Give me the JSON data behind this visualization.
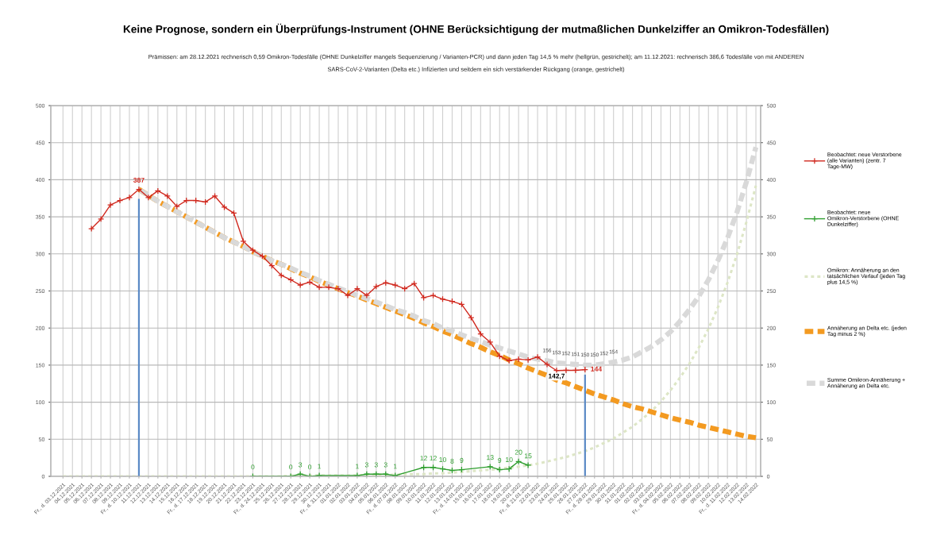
{
  "chart_data": {
    "type": "line",
    "title": "Keine Prognose, sondern ein Überprüfungs-Instrument (OHNE Berücksichtigung der mutmaßlichen Dunkelziffer an Omikron-Todesfällen)",
    "subtitle": "Prämissen: am 28.12.2021 rechnerisch 0,59 Omikron-Todesfälle (OHNE Dunkelziffer mangels Sequenzierung / Varianten-PCR) und dann jeden Tag 14,5 % mehr (hellgrün, gestrichelt); am 11.12.2021: rechnerisch 386,6 Todesfälle von mit ANDEREN SARS-CoV-2-Varianten (Delta etc.) Infizierten und seitdem ein sich verstärkender Rückgang (orange, gestrichelt)",
    "categories": [
      "Fr., d. 03.12.2021",
      "04.12.2021",
      "05.12.2021",
      "06.12.2021",
      "07.12.2021",
      "08.12.2021",
      "09.12.2021",
      "Fr., d. 10.12.2021",
      "11.12.2021",
      "12.12.2021",
      "13.12.2021",
      "14.12.2021",
      "15.12.2021",
      "16.12.2021",
      "Fr., d. 17.12.2021",
      "18.12.2021",
      "19.12.2021",
      "20.12.2021",
      "21.12.2021",
      "22.12.2021",
      "23.12.2021",
      "Fr., d. 24.12.2021",
      "25.12.2021",
      "26.12.2021",
      "27.12.2021",
      "28.12.2021",
      "29.12.2021",
      "30.12.2021",
      "Fr., d. 31.12.2021",
      "01.01.2022",
      "02.01.2022",
      "03.01.2022",
      "04.01.2022",
      "05.01.2022",
      "06.01.2022",
      "Fr., d. 07.01.2022",
      "08.01.2022",
      "09.01.2022",
      "10.01.2022",
      "11.01.2022",
      "12.01.2022",
      "13.01.2022",
      "Fr., d. 14.01.2022",
      "15.01.2022",
      "16.01.2022",
      "17.01.2022",
      "18.01.2022",
      "19.01.2022",
      "20.01.2022",
      "Fr., d. 21.01.2022",
      "22.01.2022",
      "23.01.2022",
      "24.01.2022",
      "25.01.2022",
      "26.01.2022",
      "27.01.2022",
      "Fr., d. 28.01.2022",
      "29.01.2022",
      "30.01.2022",
      "31.01.2022",
      "01.02.2022",
      "02.02.2022",
      "03.02.2022",
      "Fr., d. 04.02.2022",
      "05.02.2022",
      "06.02.2022",
      "07.02.2022",
      "08.02.2022",
      "09.02.2022",
      "10.02.2022",
      "Fr., d. 11.02.2022",
      "12.02.2022",
      "13.02.2022",
      "14.02.2022"
    ],
    "series": [
      {
        "name": "Beobachtet: neue Verstorbene (alle Varianten) (zentr. 7 Tage-MW)",
        "color": "#d0281e",
        "line_style": "solid",
        "marker": "cross",
        "values": [
          null,
          null,
          null,
          334,
          347,
          366,
          372,
          376,
          387,
          376,
          385,
          378,
          364,
          372,
          372,
          370,
          378,
          363,
          355,
          317,
          305,
          297,
          284,
          271,
          265,
          258,
          262,
          255,
          255,
          253,
          244,
          253,
          244,
          256,
          261,
          258,
          253,
          260,
          241,
          244,
          239,
          236,
          232,
          214,
          192,
          181,
          162,
          156,
          158,
          157,
          161,
          151,
          142.7,
          143,
          143,
          144,
          null,
          null,
          null,
          null,
          null,
          null,
          null,
          null,
          null,
          null,
          null,
          null,
          null,
          null,
          null,
          null,
          null,
          null
        ],
        "value_labels": [
          null,
          null,
          null,
          null,
          null,
          null,
          null,
          null,
          "387",
          null,
          null,
          null,
          null,
          null,
          null,
          null,
          null,
          null,
          null,
          null,
          null,
          null,
          null,
          null,
          null,
          null,
          null,
          null,
          null,
          null,
          null,
          null,
          null,
          null,
          null,
          null,
          null,
          null,
          null,
          null,
          null,
          null,
          null,
          null,
          null,
          null,
          null,
          null,
          null,
          null,
          null,
          null,
          null,
          null,
          null,
          "144",
          null,
          null,
          null,
          null,
          null,
          null,
          null,
          null,
          null,
          null,
          null,
          null,
          null,
          null,
          null,
          null,
          null,
          null
        ]
      },
      {
        "name": "Beobachtet: neue Omikron-Verstorbene (OHNE Dunkelziffer)",
        "color": "#2e9e2e",
        "line_style": "solid",
        "marker": "cross",
        "x": [
          "23.12.2021",
          "27.12.2021",
          "28.12.2021",
          "29.12.2021",
          "30.12.2021",
          "03.01.2022",
          "04.01.2022",
          "05.01.2022",
          "06.01.2022",
          "Fr., d. 07.01.2022",
          "10.01.2022",
          "11.01.2022",
          "12.01.2022",
          "13.01.2022",
          "Fr., d. 14.01.2022",
          "17.01.2022",
          "18.01.2022",
          "19.01.2022",
          "20.01.2022",
          "Fr., d. 21.01.2022"
        ],
        "values": [
          0,
          0,
          3,
          0,
          1,
          1,
          3,
          3,
          3,
          1,
          12,
          12,
          10,
          8,
          9,
          13,
          9,
          10,
          20,
          15
        ],
        "value_labels": [
          "0",
          "0",
          "3",
          "0",
          "1",
          "1",
          "3",
          "3",
          "3",
          "1",
          "12",
          "12",
          "10",
          "8",
          "9",
          "13",
          "9",
          "10",
          "20",
          "15"
        ]
      },
      {
        "name": "Omikron: Annäherung an den tatsächlichen Verlauf (jeden Tag plus 14,5 %)",
        "color": "#dde6c6",
        "line_style": "dotted",
        "values": [
          0,
          0,
          0,
          0,
          0,
          0,
          0,
          0,
          0,
          0,
          0,
          0,
          0,
          0,
          0,
          0,
          0,
          0,
          0,
          0,
          0,
          0,
          0,
          0,
          1,
          1,
          1,
          1,
          1,
          1,
          1,
          1,
          2,
          2,
          2,
          2,
          3,
          3,
          3,
          4,
          4,
          5,
          6,
          7,
          8,
          9,
          10,
          12,
          13,
          15,
          17,
          20,
          23,
          26,
          30,
          34,
          39,
          45,
          51,
          59,
          67,
          77,
          88,
          101,
          116,
          133,
          152,
          174,
          199,
          228,
          261,
          299,
          343,
          392
        ]
      },
      {
        "name": "Annäherung an Delta etc. (jeden Tag minus 2 %)",
        "color": "#f39a21",
        "line_style": "dashed",
        "values": [
          null,
          null,
          null,
          null,
          null,
          null,
          null,
          null,
          387,
          379,
          371,
          364,
          357,
          350,
          343,
          336,
          329,
          322,
          316,
          310,
          303,
          297,
          291,
          286,
          280,
          274,
          269,
          263,
          258,
          253,
          248,
          243,
          238,
          233,
          228,
          223,
          218,
          213,
          207,
          202,
          196,
          191,
          185,
          179,
          174,
          168,
          163,
          157,
          152,
          146,
          141,
          136,
          130,
          126,
          121,
          116,
          111,
          107,
          103,
          98,
          94,
          91,
          87,
          83,
          79,
          76,
          73,
          69,
          66,
          63,
          60,
          57,
          54,
          52
        ]
      },
      {
        "name": "Summe Omikron-Annäherung + Annäherung an Delta etc.",
        "color": "#d9d9d9",
        "line_style": "dashed",
        "values": [
          null,
          null,
          null,
          null,
          null,
          null,
          null,
          null,
          387,
          379,
          371,
          364,
          357,
          350,
          343,
          336,
          329,
          322,
          316,
          310,
          303,
          297,
          291,
          286,
          281,
          275,
          270,
          264,
          259,
          254,
          249,
          244,
          240,
          235,
          230,
          225,
          221,
          216,
          210,
          206,
          200,
          196,
          191,
          186,
          182,
          177,
          173,
          169,
          165,
          161,
          158,
          156,
          153,
          152,
          151,
          150,
          150,
          152,
          154,
          157,
          161,
          168,
          175,
          184,
          195,
          209,
          225,
          243,
          265,
          291,
          321,
          356,
          397,
          444
        ],
        "value_labels": [
          null,
          null,
          null,
          null,
          null,
          null,
          null,
          null,
          null,
          null,
          null,
          null,
          null,
          null,
          null,
          null,
          null,
          null,
          null,
          null,
          null,
          null,
          null,
          null,
          null,
          null,
          null,
          null,
          null,
          null,
          null,
          null,
          null,
          null,
          null,
          null,
          null,
          null,
          null,
          null,
          null,
          null,
          null,
          null,
          null,
          null,
          null,
          null,
          null,
          null,
          null,
          "156",
          "153",
          "152",
          "151",
          "150",
          "150",
          "152",
          "154",
          null,
          null,
          null,
          null,
          null,
          null,
          null,
          null,
          null,
          null,
          null,
          null,
          null,
          null,
          null
        ]
      },
      {
        "color": "#5b8ac6",
        "line_style": "solid",
        "x": [
          "11.12.2021",
          "11.12.2021"
        ],
        "values": [
          0,
          373
        ]
      },
      {
        "color": "#5b8ac6",
        "line_style": "solid",
        "x": [
          "27.01.2022",
          "27.01.2022"
        ],
        "values": [
          0,
          136
        ]
      }
    ],
    "annotations": [
      {
        "text": "142,7",
        "x": "24.01.2022",
        "y": 142.7
      }
    ],
    "ylim": [
      0,
      500
    ],
    "yticks": [
      0,
      50,
      100,
      150,
      200,
      250,
      300,
      350,
      400,
      450,
      500
    ],
    "y2lim": [
      0,
      500
    ],
    "y2ticks": [
      0,
      50,
      100,
      150,
      200,
      250,
      300,
      350,
      400,
      450,
      500
    ],
    "grid": true,
    "legend": "right"
  }
}
